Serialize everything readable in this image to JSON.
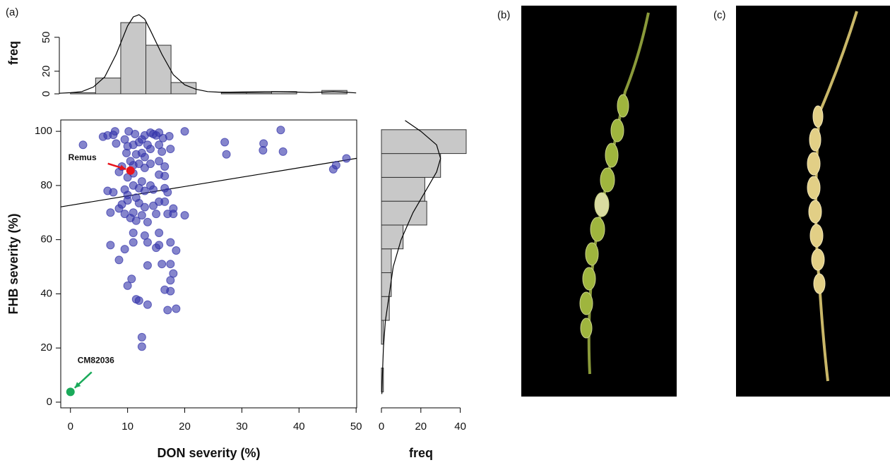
{
  "panel_labels": [
    "(a)",
    "(b)",
    "(c)"
  ],
  "chart_data": [
    {
      "type": "scatter",
      "x_label": "DON severity (%)",
      "y_label": "FHB severity (%)",
      "color": "#3333aa",
      "xlim": [
        -1.7,
        50.1
      ],
      "ylim": [
        -2.1,
        104.2
      ],
      "xticks": [
        0,
        10,
        20,
        30,
        40,
        50
      ],
      "yticks": [
        0,
        20,
        40,
        60,
        80,
        100
      ],
      "x": [
        2.2,
        5.7,
        6.5,
        7.8,
        7.5,
        10.2,
        11.3,
        12.5,
        13,
        14,
        14.5,
        15,
        15.5,
        16.2,
        17.3,
        20,
        8,
        9.5,
        10,
        11,
        12,
        13.5,
        14,
        15.5,
        16,
        17.5,
        9.8,
        11.5,
        12.5,
        13,
        10.5,
        11,
        12,
        13,
        14,
        15.5,
        16.5,
        9,
        8.5,
        10,
        11,
        12.5,
        14,
        15.5,
        16.5,
        6.5,
        7.5,
        9.5,
        10,
        11,
        12,
        13,
        14.5,
        16.5,
        17,
        9,
        10,
        11.5,
        12,
        13,
        14.5,
        15.5,
        16.5,
        17,
        18,
        18,
        20,
        7,
        8.5,
        9.5,
        10.5,
        11,
        11.5,
        12.5,
        13.5,
        15,
        11,
        13,
        15.5,
        11,
        13.5,
        15.5,
        17.5,
        18.5,
        7,
        9.5,
        8.5,
        15,
        13.5,
        16,
        17.5,
        18,
        17.5,
        10,
        10.7,
        11.5,
        12,
        13.5,
        16.5,
        17.5,
        17,
        18.5,
        12.5,
        12.5,
        27,
        27.3,
        33.7,
        33.8,
        36.8,
        37.2,
        46,
        46.5,
        48.3
      ],
      "y": [
        95,
        98,
        98.5,
        100,
        98.7,
        100,
        99,
        97,
        98.5,
        99.5,
        99,
        98.5,
        99.5,
        97.5,
        98.2,
        100,
        95.5,
        97,
        94.5,
        95,
        96,
        95,
        93.5,
        95,
        92.5,
        93.5,
        92,
        91.5,
        92,
        90.5,
        89,
        87.5,
        88,
        86.5,
        88,
        89,
        87,
        87,
        85,
        83,
        84.5,
        81.5,
        80,
        84,
        83.5,
        78,
        77.5,
        78.5,
        76.5,
        80,
        79,
        78,
        78.5,
        79,
        77.5,
        73,
        74.5,
        75.5,
        73.5,
        72,
        72.5,
        74,
        74,
        69.5,
        71.5,
        69.5,
        69,
        70,
        71.5,
        69.5,
        68,
        70,
        67,
        69,
        66.5,
        69.5,
        62.5,
        61.5,
        62.5,
        59,
        59,
        58,
        59,
        56,
        58,
        56.5,
        52.5,
        57,
        50.5,
        51,
        51,
        47.5,
        45,
        43,
        45.5,
        38,
        37.5,
        36,
        41.5,
        41,
        34,
        34.5,
        24,
        20.5,
        96,
        91.5,
        93,
        95.5,
        100.5,
        92.5,
        86,
        87.5,
        90
      ],
      "fit": {
        "intercept": 72.7,
        "slope": 0.346
      },
      "annotations": [
        {
          "label": "Remus",
          "x": 10.5,
          "y": 85.5,
          "color": "#e8141c"
        },
        {
          "label": "CM82036",
          "x": 0,
          "y": 3.8,
          "color": "#1aaa5a"
        }
      ]
    },
    {
      "type": "histogram",
      "orientation": "vertical",
      "y_label": "freq",
      "color": "#c8c8c8",
      "bins": [
        0,
        4.4,
        8.8,
        13.2,
        17.6,
        22,
        26.4,
        30.8,
        35.2,
        39.6,
        44,
        48.4
      ],
      "counts": [
        1,
        14,
        63,
        43,
        10,
        0,
        1,
        1,
        2,
        0,
        3
      ],
      "xlim": [
        -1.7,
        50.1
      ],
      "ylim": [
        0,
        73
      ],
      "yticks": [
        0,
        20,
        50
      ],
      "density": {
        "x": [
          -2,
          0,
          2,
          4,
          6,
          8,
          10,
          11,
          12,
          13,
          14,
          16,
          18,
          20,
          22,
          24,
          26,
          28,
          30,
          32,
          34,
          36,
          38,
          40,
          42,
          44,
          46,
          48,
          50
        ],
        "y": [
          0.5,
          1,
          2,
          6,
          15,
          35,
          60,
          68,
          70,
          66,
          56,
          35,
          17,
          8,
          4,
          2,
          1.5,
          1.5,
          1.6,
          1.8,
          2,
          2,
          1.8,
          1.5,
          1.2,
          1.5,
          2,
          1.5,
          0.8
        ]
      }
    },
    {
      "type": "histogram",
      "orientation": "horizontal",
      "x_label": "freq",
      "color": "#c8c8c8",
      "bins": [
        3.8,
        12.6,
        21.4,
        30.2,
        39,
        47.8,
        56.6,
        65.4,
        74.2,
        83,
        91.8,
        100.6
      ],
      "counts": [
        1,
        0,
        1,
        4,
        5,
        5,
        11,
        23,
        22,
        30,
        43
      ],
      "xlim": [
        0,
        43
      ],
      "xticks": [
        0,
        20,
        40
      ],
      "ylim": [
        -2.1,
        104.2
      ],
      "density": {
        "x": [
          0.2,
          0.5,
          1,
          2,
          4,
          6,
          10,
          16,
          24,
          28,
          30,
          28,
          20,
          12
        ],
        "y": [
          3,
          10,
          20,
          30,
          40,
          50,
          60,
          70,
          80,
          85,
          90,
          95,
          100,
          104
        ]
      }
    }
  ]
}
